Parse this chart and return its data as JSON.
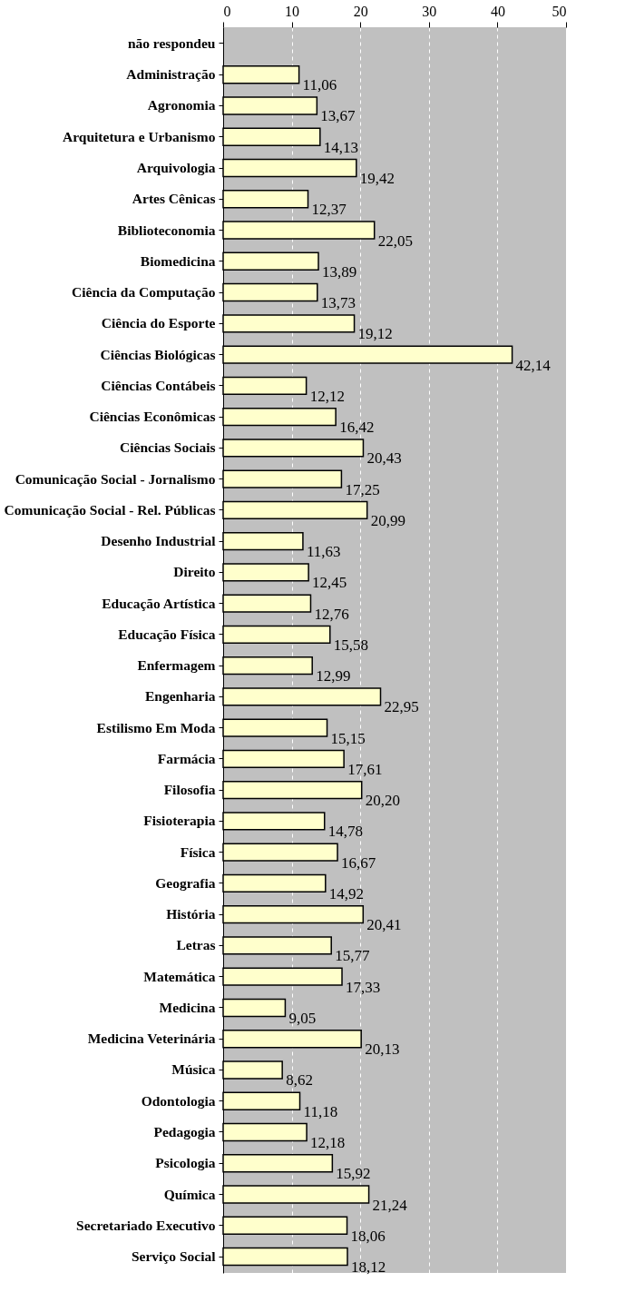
{
  "chart_data": {
    "type": "bar",
    "orientation": "horizontal",
    "categories": [
      "não respondeu",
      "Administração",
      "Agronomia",
      "Arquitetura e Urbanismo",
      "Arquivologia",
      "Artes Cênicas",
      "Biblioteconomia",
      "Biomedicina",
      "Ciência da Computação",
      "Ciência do Esporte",
      "Ciências Biológicas",
      "Ciências Contábeis",
      "Ciências Econômicas",
      "Ciências Sociais",
      "Comunicação Social - Jornalismo",
      "Comunicação Social - Rel. Públicas",
      "Desenho Industrial",
      "Direito",
      "Educação Artística",
      "Educação Física",
      "Enfermagem",
      "Engenharia",
      "Estilismo Em Moda",
      "Farmácia",
      "Filosofia",
      "Fisioterapia",
      "Física",
      "Geografia",
      "História",
      "Letras",
      "Matemática",
      "Medicina",
      "Medicina Veterinária",
      "Música",
      "Odontologia",
      "Pedagogia",
      "Psicologia",
      "Química",
      "Secretariado Executivo",
      "Serviço Social"
    ],
    "values": [
      null,
      11.06,
      13.67,
      14.13,
      19.42,
      12.37,
      22.05,
      13.89,
      13.73,
      19.12,
      42.14,
      12.12,
      16.42,
      20.43,
      17.25,
      20.99,
      11.63,
      12.45,
      12.76,
      15.58,
      12.99,
      22.95,
      15.15,
      17.61,
      20.2,
      14.78,
      16.67,
      14.92,
      20.41,
      15.77,
      17.33,
      9.05,
      20.13,
      8.62,
      11.18,
      12.18,
      15.92,
      21.24,
      18.06,
      18.12
    ],
    "value_labels": [
      null,
      "11,06",
      "13,67",
      "14,13",
      "19,42",
      "12,37",
      "22,05",
      "13,89",
      "13,73",
      "19,12",
      "42,14",
      "12,12",
      "16,42",
      "20,43",
      "17,25",
      "20,99",
      "11,63",
      "12,45",
      "12,76",
      "15,58",
      "12,99",
      "22,95",
      "15,15",
      "17,61",
      "20,20",
      "14,78",
      "16,67",
      "14,92",
      "20,41",
      "15,77",
      "17,33",
      "9,05",
      "20,13",
      "8,62",
      "11,18",
      "12,18",
      "15,92",
      "21,24",
      "18,06",
      "18,12"
    ],
    "color": "#ffffcc",
    "xlim": [
      0,
      50
    ],
    "xticks": [
      0,
      10,
      20,
      30,
      40,
      50
    ],
    "grid": "x"
  }
}
